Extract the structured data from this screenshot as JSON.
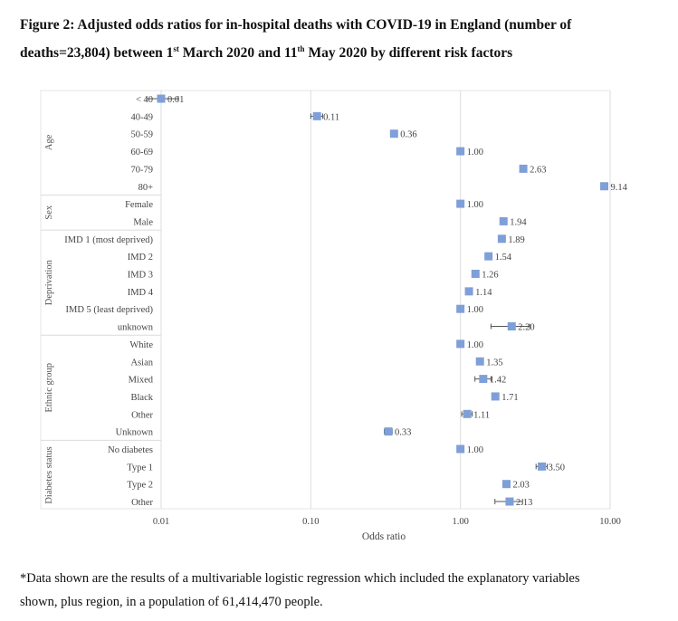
{
  "title": {
    "line1": "Figure 2: Adjusted odds ratios for in-hospital deaths with COVID-19 in England (number of",
    "line2_a": "deaths=23,804) between 1",
    "sup1": "st",
    "line2_b": " March 2020 and 11",
    "sup2": "th",
    "line2_c": " May 2020 by different risk factors"
  },
  "footnote": {
    "line1": "*Data shown are the results of a multivariable logistic regression which included the explanatory variables",
    "line2": "shown, plus region, in a population of 61,414,470 people."
  },
  "chart_data": {
    "type": "forest",
    "xlabel": "Odds ratio",
    "xscale": "log",
    "xlim": [
      0.01,
      10
    ],
    "xticks": [
      "0.01",
      "0.10",
      "1.00",
      "10.00"
    ],
    "grid": "vertical",
    "marker_color": "#7f9fd9",
    "groups": [
      {
        "name": "Age",
        "rows": [
          {
            "label": "< 40",
            "value": 0.01,
            "label_text": "0.01",
            "lo": 0.008,
            "hi": 0.013
          },
          {
            "label": "40-49",
            "value": 0.11,
            "label_text": "0.11",
            "lo": 0.1,
            "hi": 0.12
          },
          {
            "label": "50-59",
            "value": 0.36,
            "label_text": "0.36",
            "lo": 0.345,
            "hi": 0.375
          },
          {
            "label": "60-69",
            "value": 1.0,
            "label_text": "1.00"
          },
          {
            "label": "70-79",
            "value": 2.63,
            "label_text": "2.63"
          },
          {
            "label": "80+",
            "value": 9.14,
            "label_text": "9.14"
          }
        ]
      },
      {
        "name": "Sex",
        "rows": [
          {
            "label": "Female",
            "value": 1.0,
            "label_text": "1.00"
          },
          {
            "label": "Male",
            "value": 1.94,
            "label_text": "1.94"
          }
        ]
      },
      {
        "name": "Deprivation",
        "rows": [
          {
            "label": "IMD 1 (most deprived)",
            "value": 1.89,
            "label_text": "1.89"
          },
          {
            "label": "IMD 2",
            "value": 1.54,
            "label_text": "1.54"
          },
          {
            "label": "IMD 3",
            "value": 1.26,
            "label_text": "1.26"
          },
          {
            "label": "IMD 4",
            "value": 1.14,
            "label_text": "1.14"
          },
          {
            "label": "IMD 5 (least deprived)",
            "value": 1.0,
            "label_text": "1.00"
          },
          {
            "label": "unknown",
            "value": 2.2,
            "label_text": "2.20",
            "lo": 1.6,
            "hi": 2.9
          }
        ]
      },
      {
        "name": "Ethnic group",
        "rows": [
          {
            "label": "White",
            "value": 1.0,
            "label_text": "1.00"
          },
          {
            "label": "Asian",
            "value": 1.35,
            "label_text": "1.35"
          },
          {
            "label": "Mixed",
            "value": 1.42,
            "label_text": "1.42",
            "lo": 1.25,
            "hi": 1.6
          },
          {
            "label": "Black",
            "value": 1.71,
            "label_text": "1.71",
            "lo": 1.65,
            "hi": 1.78
          },
          {
            "label": "Other",
            "value": 1.11,
            "label_text": "1.11",
            "lo": 1.02,
            "hi": 1.2
          },
          {
            "label": "Unknown",
            "value": 0.33,
            "label_text": "0.33",
            "lo": 0.31,
            "hi": 0.35
          }
        ]
      },
      {
        "name": "Diabetes status",
        "rows": [
          {
            "label": "No diabetes",
            "value": 1.0,
            "label_text": "1.00"
          },
          {
            "label": "Type 1",
            "value": 3.5,
            "label_text": "3.50",
            "lo": 3.2,
            "hi": 3.8
          },
          {
            "label": "Type 2",
            "value": 2.03,
            "label_text": "2.03"
          },
          {
            "label": "Other",
            "value": 2.13,
            "label_text": "2.13",
            "lo": 1.7,
            "hi": 2.6
          }
        ]
      }
    ]
  }
}
